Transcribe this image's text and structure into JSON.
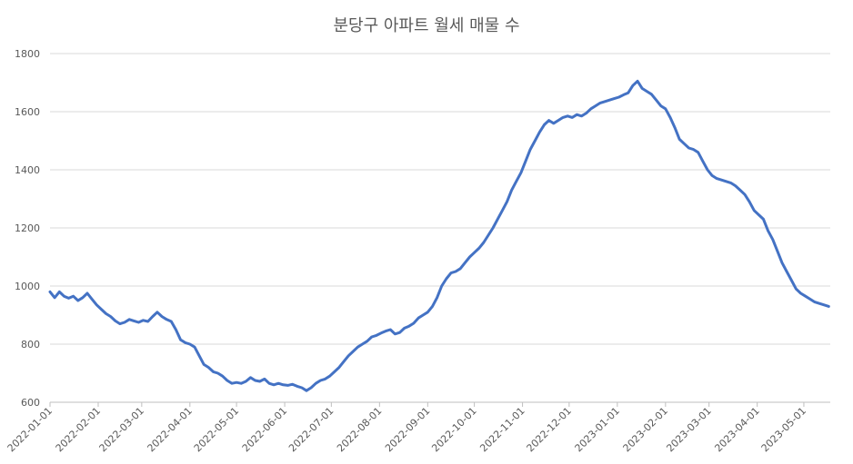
{
  "chart_data": {
    "type": "line",
    "title": "분당구 아파트 월세 매물 수",
    "xlabel": "",
    "ylabel": "",
    "ylim": [
      600,
      1800
    ],
    "yticks": [
      600,
      800,
      1000,
      1200,
      1400,
      1600,
      1800
    ],
    "xticks": [
      "2022-01-01",
      "2022-02-01",
      "2022-03-01",
      "2022-04-01",
      "2022-05-01",
      "2022-06-01",
      "2022-07-01",
      "2022-08-01",
      "2022-09-01",
      "2022-10-01",
      "2022-11-01",
      "2022-12-01",
      "2023-01-01",
      "2023-02-01",
      "2023-03-01",
      "2023-04-01",
      "2023-05-01"
    ],
    "xlim": [
      "2022-01-01",
      "2023-05-18"
    ],
    "grid": true,
    "line_color": "#4472c4",
    "series": [
      {
        "name": "",
        "points": [
          [
            "2022-01-01",
            980
          ],
          [
            "2022-01-04",
            960
          ],
          [
            "2022-01-07",
            980
          ],
          [
            "2022-01-10",
            965
          ],
          [
            "2022-01-13",
            958
          ],
          [
            "2022-01-16",
            965
          ],
          [
            "2022-01-19",
            950
          ],
          [
            "2022-01-22",
            960
          ],
          [
            "2022-01-25",
            975
          ],
          [
            "2022-01-28",
            955
          ],
          [
            "2022-01-31",
            935
          ],
          [
            "2022-02-03",
            920
          ],
          [
            "2022-02-06",
            905
          ],
          [
            "2022-02-09",
            895
          ],
          [
            "2022-02-12",
            880
          ],
          [
            "2022-02-15",
            870
          ],
          [
            "2022-02-18",
            875
          ],
          [
            "2022-02-21",
            885
          ],
          [
            "2022-02-24",
            880
          ],
          [
            "2022-02-27",
            875
          ],
          [
            "2022-03-02",
            882
          ],
          [
            "2022-03-05",
            878
          ],
          [
            "2022-03-08",
            895
          ],
          [
            "2022-03-11",
            910
          ],
          [
            "2022-03-14",
            895
          ],
          [
            "2022-03-17",
            885
          ],
          [
            "2022-03-20",
            878
          ],
          [
            "2022-03-23",
            850
          ],
          [
            "2022-03-26",
            815
          ],
          [
            "2022-03-29",
            805
          ],
          [
            "2022-04-01",
            800
          ],
          [
            "2022-04-04",
            790
          ],
          [
            "2022-04-07",
            760
          ],
          [
            "2022-04-10",
            730
          ],
          [
            "2022-04-13",
            720
          ],
          [
            "2022-04-16",
            705
          ],
          [
            "2022-04-19",
            700
          ],
          [
            "2022-04-22",
            690
          ],
          [
            "2022-04-25",
            675
          ],
          [
            "2022-04-28",
            665
          ],
          [
            "2022-05-01",
            668
          ],
          [
            "2022-05-04",
            665
          ],
          [
            "2022-05-07",
            672
          ],
          [
            "2022-05-10",
            685
          ],
          [
            "2022-05-13",
            675
          ],
          [
            "2022-05-16",
            672
          ],
          [
            "2022-05-19",
            680
          ],
          [
            "2022-05-22",
            665
          ],
          [
            "2022-05-25",
            660
          ],
          [
            "2022-05-28",
            665
          ],
          [
            "2022-05-31",
            660
          ],
          [
            "2022-06-03",
            658
          ],
          [
            "2022-06-06",
            662
          ],
          [
            "2022-06-09",
            655
          ],
          [
            "2022-06-12",
            650
          ],
          [
            "2022-06-15",
            640
          ],
          [
            "2022-06-18",
            650
          ],
          [
            "2022-06-21",
            665
          ],
          [
            "2022-06-24",
            675
          ],
          [
            "2022-06-27",
            680
          ],
          [
            "2022-06-30",
            690
          ],
          [
            "2022-07-03",
            705
          ],
          [
            "2022-07-06",
            720
          ],
          [
            "2022-07-09",
            740
          ],
          [
            "2022-07-12",
            760
          ],
          [
            "2022-07-15",
            775
          ],
          [
            "2022-07-18",
            790
          ],
          [
            "2022-07-21",
            800
          ],
          [
            "2022-07-24",
            810
          ],
          [
            "2022-07-27",
            825
          ],
          [
            "2022-07-30",
            830
          ],
          [
            "2022-08-02",
            838
          ],
          [
            "2022-08-05",
            845
          ],
          [
            "2022-08-08",
            850
          ],
          [
            "2022-08-11",
            835
          ],
          [
            "2022-08-14",
            840
          ],
          [
            "2022-08-17",
            855
          ],
          [
            "2022-08-20",
            862
          ],
          [
            "2022-08-23",
            872
          ],
          [
            "2022-08-26",
            890
          ],
          [
            "2022-08-29",
            900
          ],
          [
            "2022-09-01",
            910
          ],
          [
            "2022-09-04",
            930
          ],
          [
            "2022-09-07",
            960
          ],
          [
            "2022-09-10",
            1000
          ],
          [
            "2022-09-13",
            1025
          ],
          [
            "2022-09-16",
            1045
          ],
          [
            "2022-09-19",
            1050
          ],
          [
            "2022-09-22",
            1060
          ],
          [
            "2022-09-25",
            1080
          ],
          [
            "2022-09-28",
            1100
          ],
          [
            "2022-10-01",
            1115
          ],
          [
            "2022-10-04",
            1130
          ],
          [
            "2022-10-07",
            1150
          ],
          [
            "2022-10-10",
            1175
          ],
          [
            "2022-10-13",
            1200
          ],
          [
            "2022-10-16",
            1230
          ],
          [
            "2022-10-19",
            1260
          ],
          [
            "2022-10-22",
            1290
          ],
          [
            "2022-10-25",
            1330
          ],
          [
            "2022-10-28",
            1360
          ],
          [
            "2022-10-31",
            1390
          ],
          [
            "2022-11-03",
            1430
          ],
          [
            "2022-11-06",
            1470
          ],
          [
            "2022-11-09",
            1500
          ],
          [
            "2022-11-12",
            1530
          ],
          [
            "2022-11-15",
            1555
          ],
          [
            "2022-11-18",
            1570
          ],
          [
            "2022-11-21",
            1560
          ],
          [
            "2022-11-24",
            1570
          ],
          [
            "2022-11-27",
            1580
          ],
          [
            "2022-11-30",
            1585
          ],
          [
            "2022-12-03",
            1580
          ],
          [
            "2022-12-06",
            1590
          ],
          [
            "2022-12-09",
            1585
          ],
          [
            "2022-12-12",
            1595
          ],
          [
            "2022-12-15",
            1610
          ],
          [
            "2022-12-18",
            1620
          ],
          [
            "2022-12-21",
            1630
          ],
          [
            "2022-12-24",
            1635
          ],
          [
            "2022-12-27",
            1640
          ],
          [
            "2022-12-30",
            1645
          ],
          [
            "2023-01-02",
            1650
          ],
          [
            "2023-01-05",
            1658
          ],
          [
            "2023-01-08",
            1665
          ],
          [
            "2023-01-11",
            1690
          ],
          [
            "2023-01-14",
            1705
          ],
          [
            "2023-01-17",
            1680
          ],
          [
            "2023-01-20",
            1670
          ],
          [
            "2023-01-23",
            1660
          ],
          [
            "2023-01-26",
            1640
          ],
          [
            "2023-01-29",
            1620
          ],
          [
            "2023-02-01",
            1610
          ],
          [
            "2023-02-04",
            1580
          ],
          [
            "2023-02-07",
            1545
          ],
          [
            "2023-02-10",
            1505
          ],
          [
            "2023-02-13",
            1490
          ],
          [
            "2023-02-16",
            1475
          ],
          [
            "2023-02-19",
            1470
          ],
          [
            "2023-02-22",
            1460
          ],
          [
            "2023-02-25",
            1430
          ],
          [
            "2023-02-28",
            1400
          ],
          [
            "2023-03-03",
            1380
          ],
          [
            "2023-03-06",
            1370
          ],
          [
            "2023-03-09",
            1365
          ],
          [
            "2023-03-12",
            1360
          ],
          [
            "2023-03-15",
            1355
          ],
          [
            "2023-03-18",
            1345
          ],
          [
            "2023-03-21",
            1330
          ],
          [
            "2023-03-24",
            1315
          ],
          [
            "2023-03-27",
            1290
          ],
          [
            "2023-03-30",
            1260
          ],
          [
            "2023-04-02",
            1245
          ],
          [
            "2023-04-05",
            1230
          ],
          [
            "2023-04-08",
            1190
          ],
          [
            "2023-04-11",
            1160
          ],
          [
            "2023-04-14",
            1120
          ],
          [
            "2023-04-17",
            1080
          ],
          [
            "2023-04-20",
            1050
          ],
          [
            "2023-04-23",
            1020
          ],
          [
            "2023-04-26",
            990
          ],
          [
            "2023-04-29",
            975
          ],
          [
            "2023-05-02",
            965
          ],
          [
            "2023-05-05",
            955
          ],
          [
            "2023-05-08",
            945
          ],
          [
            "2023-05-11",
            940
          ],
          [
            "2023-05-14",
            935
          ],
          [
            "2023-05-17",
            930
          ]
        ]
      }
    ]
  }
}
